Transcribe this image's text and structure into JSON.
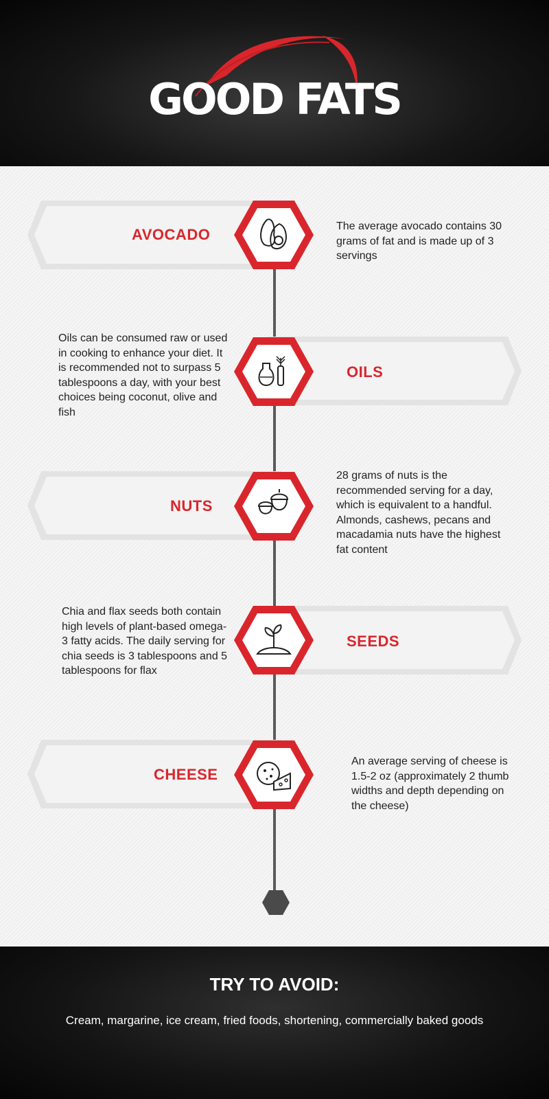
{
  "header": {
    "title": "GOOD FATS"
  },
  "items": [
    {
      "label": "AVOCADO",
      "icon": "avocado-icon",
      "description": "The average avocado contains 30 grams of fat and is made up of 3 servings"
    },
    {
      "label": "OILS",
      "icon": "oil-bottles-icon",
      "description": "Oils can be consumed raw or used in cooking to enhance your diet. It is recommended not to surpass 5 tablespoons a day, with your best choices being coconut, olive and fish"
    },
    {
      "label": "NUTS",
      "icon": "acorn-nuts-icon",
      "description": "28 grams of nuts is the recommended serving for a day, which is equivalent to a handful. Almonds, cashews, pecans and macadamia nuts have the highest fat content"
    },
    {
      "label": "SEEDS",
      "icon": "sprouting-seed-icon",
      "description": "Chia and flax seeds both contain high levels of plant-based  omega-3 fatty acids. The daily serving for chia seeds is 3 tablespoons and 5 tablespoons for flax"
    },
    {
      "label": "CHEESE",
      "icon": "cheese-icon",
      "description": "An average serving of cheese is 1.5-2 oz (approximately 2 thumb widths and depth depending on the cheese)"
    }
  ],
  "footer": {
    "title": "TRY TO AVOID:",
    "text": "Cream, margarine, ice cream,  fried foods, shortening, commercially baked goods"
  },
  "colors": {
    "accent": "#d9262c",
    "dark": "#111111",
    "line": "#5a5a5a",
    "banner": "#e4e4e4"
  }
}
